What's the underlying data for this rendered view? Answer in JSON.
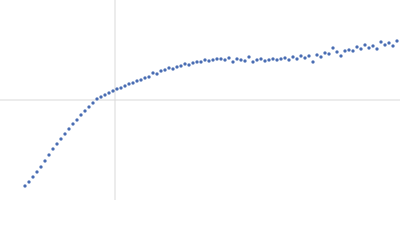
{
  "chart_data": {
    "type": "scatter",
    "color": "#4a6db3",
    "xlim": [
      -115,
      285
    ],
    "ylim": [
      -100,
      100
    ],
    "x": [
      -90,
      -86,
      -82,
      -78,
      -74,
      -70,
      -66,
      -62,
      -58,
      -54,
      -50,
      -46,
      -42,
      -38,
      -34,
      -30,
      -26,
      -22,
      -18,
      -14,
      -10,
      -6,
      -2,
      2,
      6,
      10,
      14,
      18,
      22,
      26,
      30,
      34,
      38,
      42,
      46,
      50,
      54,
      58,
      62,
      66,
      70,
      74,
      78,
      82,
      86,
      90,
      94,
      98,
      102,
      106,
      110,
      114,
      118,
      122,
      126,
      130,
      134,
      138,
      142,
      146,
      150,
      154,
      158,
      162,
      166,
      170,
      174,
      178,
      182,
      186,
      190,
      194,
      198,
      202,
      206,
      210,
      214,
      218,
      222,
      226,
      230,
      234,
      238,
      242,
      246,
      250,
      254,
      258,
      262,
      266,
      270,
      274,
      278,
      282
    ],
    "values": [
      -86,
      -82,
      -77,
      -72,
      -67,
      -61,
      -55,
      -49,
      -44,
      -39,
      -34,
      -29,
      -24,
      -20,
      -15,
      -11,
      -7,
      -3,
      1,
      3,
      5,
      7,
      9,
      11,
      12,
      14,
      16,
      17,
      19,
      20,
      22,
      23,
      27,
      26,
      29,
      30,
      32,
      31,
      33,
      34,
      36,
      35,
      37,
      38,
      38,
      40,
      39,
      40,
      41,
      41,
      40,
      42,
      38,
      41,
      40,
      39,
      43,
      38,
      40,
      41,
      39,
      40,
      41,
      40,
      41,
      42,
      40,
      43,
      41,
      44,
      42,
      44,
      38,
      45,
      43,
      47,
      46,
      52,
      48,
      44,
      49,
      50,
      49,
      53,
      51,
      55,
      52,
      54,
      51,
      58,
      55,
      57,
      54,
      59
    ]
  }
}
